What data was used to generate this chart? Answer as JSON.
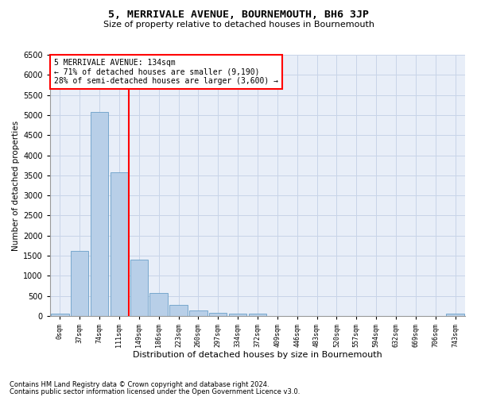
{
  "title": "5, MERRIVALE AVENUE, BOURNEMOUTH, BH6 3JP",
  "subtitle": "Size of property relative to detached houses in Bournemouth",
  "xlabel": "Distribution of detached houses by size in Bournemouth",
  "ylabel": "Number of detached properties",
  "footnote1": "Contains HM Land Registry data © Crown copyright and database right 2024.",
  "footnote2": "Contains public sector information licensed under the Open Government Licence v3.0.",
  "bar_labels": [
    "0sqm",
    "37sqm",
    "74sqm",
    "111sqm",
    "149sqm",
    "186sqm",
    "223sqm",
    "260sqm",
    "297sqm",
    "334sqm",
    "372sqm",
    "409sqm",
    "446sqm",
    "483sqm",
    "520sqm",
    "557sqm",
    "594sqm",
    "632sqm",
    "669sqm",
    "706sqm",
    "743sqm"
  ],
  "bar_values": [
    60,
    1620,
    5080,
    3580,
    1400,
    580,
    280,
    140,
    80,
    50,
    50,
    0,
    0,
    0,
    0,
    0,
    0,
    0,
    0,
    0,
    50
  ],
  "bar_color": "#b8cfe8",
  "bar_edge_color": "#6a9fc8",
  "grid_color": "#c8d4e8",
  "background_color": "#e8eef8",
  "vline_x": 3.5,
  "vline_color": "red",
  "annotation_line1": "5 MERRIVALE AVENUE: 134sqm",
  "annotation_line2": "← 71% of detached houses are smaller (9,190)",
  "annotation_line3": "28% of semi-detached houses are larger (3,600) →",
  "ylim": [
    0,
    6500
  ],
  "yticks": [
    0,
    500,
    1000,
    1500,
    2000,
    2500,
    3000,
    3500,
    4000,
    4500,
    5000,
    5500,
    6000,
    6500
  ]
}
